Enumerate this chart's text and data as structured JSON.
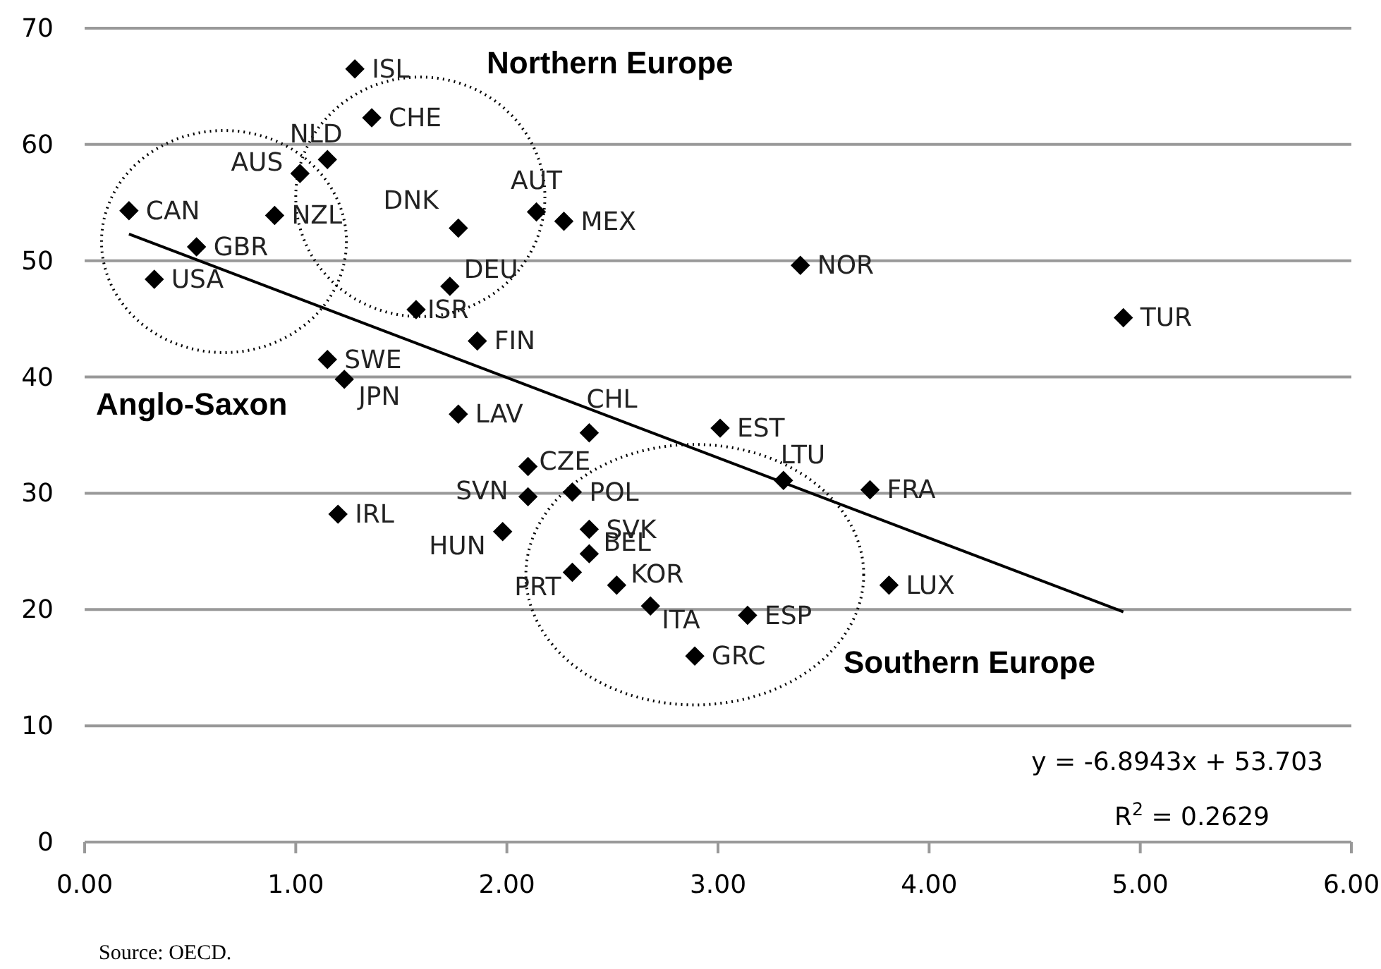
{
  "chart_data": {
    "type": "scatter",
    "grid": "y",
    "xlim": [
      0,
      6
    ],
    "xticks": [
      {
        "value": 0,
        "label": "0.00"
      },
      {
        "value": 1,
        "label": "1.00"
      },
      {
        "value": 2,
        "label": "2.00"
      },
      {
        "value": 3,
        "label": "3.00"
      },
      {
        "value": 4,
        "label": "4.00"
      },
      {
        "value": 5,
        "label": "5.00"
      },
      {
        "value": 6,
        "label": "6.00"
      }
    ],
    "ylim": [
      0,
      70
    ],
    "yticks": [
      0,
      10,
      20,
      30,
      40,
      50,
      60,
      70
    ],
    "series": [
      {
        "marker": "diamond",
        "color": "#000000",
        "x": [
          1.28,
          1.36,
          1.15,
          1.02,
          0.21,
          0.9,
          0.53,
          0.33,
          1.77,
          2.14,
          2.27,
          1.73,
          1.57,
          1.86,
          1.15,
          1.23,
          1.77,
          2.39,
          2.1,
          2.31,
          2.1,
          1.2,
          1.98,
          2.39,
          2.39,
          2.31,
          2.52,
          2.68,
          2.89,
          3.14,
          3.01,
          3.31,
          3.72,
          3.81,
          3.39,
          4.92
        ],
        "values": [
          66.5,
          62.3,
          58.7,
          57.5,
          54.3,
          53.9,
          51.2,
          48.4,
          52.8,
          54.2,
          53.4,
          47.8,
          45.8,
          43.1,
          41.5,
          39.8,
          36.8,
          35.2,
          32.3,
          30.1,
          29.7,
          28.2,
          26.7,
          26.9,
          24.8,
          23.2,
          22.1,
          20.3,
          16,
          19.5,
          35.6,
          31.1,
          30.3,
          22.1,
          49.6,
          45.1
        ],
        "value_labels": [
          "ISL",
          "CHE",
          "NLD",
          "AUS",
          "CAN",
          "NZL",
          "GBR",
          "USA",
          "DNK",
          "AUT",
          "MEX",
          "DEU",
          "ISR",
          "FIN",
          "SWE",
          "JPN",
          "LAV",
          "CHL",
          "CZE",
          "POL",
          "SVN",
          "IRL",
          "HUN",
          "SVK",
          "BEL",
          "PRT",
          "KOR",
          "ITA",
          "GRC",
          "ESP",
          "EST",
          "LTU",
          "FRA",
          "LUX",
          "NOR",
          "TUR"
        ]
      },
      {
        "type": "line",
        "marker": "none",
        "color": "#000000",
        "x": [
          0.21,
          4.92
        ],
        "values": [
          52.3,
          19.8
        ]
      }
    ],
    "annotations": [
      "Northern Europe",
      "Anglo-Saxon",
      "Southern Europe",
      "y = -6.8943x + 53.703",
      "R$^{2}$ = 0.2629",
      "Source: OECD."
    ]
  }
}
